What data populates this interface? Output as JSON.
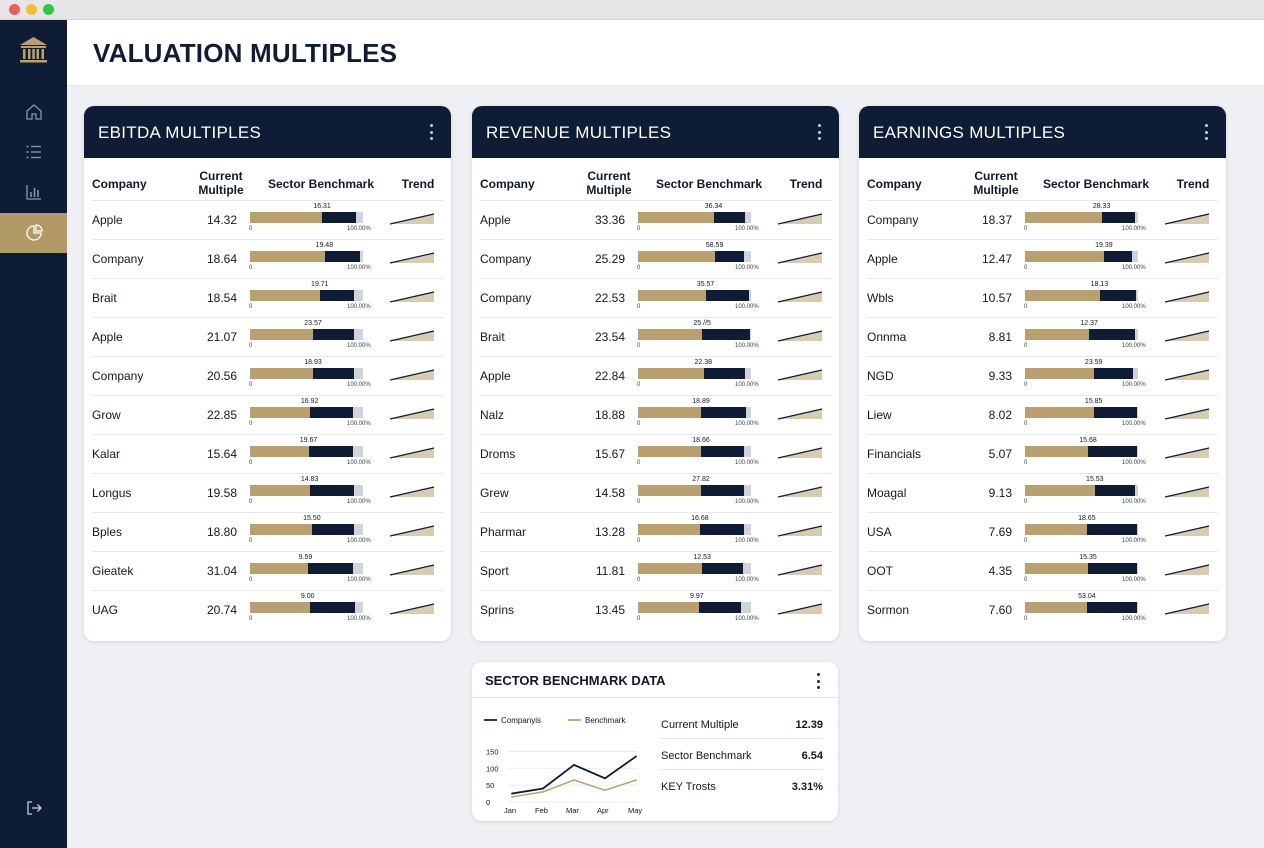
{
  "page": {
    "title": "VALUATION MULTIPLES"
  },
  "colors": {
    "navy": "#0f1c36",
    "gold": "#b9a06e",
    "active_nav": "#b29a67"
  },
  "sidebar": {
    "items": [
      {
        "icon": "home-icon",
        "active": false
      },
      {
        "icon": "list-icon",
        "active": false
      },
      {
        "icon": "bar-chart-icon",
        "active": false
      },
      {
        "icon": "pie-chart-icon",
        "active": true
      }
    ],
    "bottom_icon": "logout-icon"
  },
  "columns": {
    "company": "Company",
    "current_line1": "Current",
    "current_line2": "Multiple",
    "benchmark": "Sector Benchmark",
    "trend": "Trend",
    "bar_min": "0",
    "bar_max": "100.00%"
  },
  "tables": [
    {
      "title": "EBITDA MULTIPLES",
      "rows": [
        {
          "company": "Apple",
          "current": "14.32",
          "benchmark": "16.31",
          "gold_pct": 64,
          "navy_pct": 30
        },
        {
          "company": "Company",
          "current": "18.64",
          "benchmark": "19.48",
          "gold_pct": 66,
          "navy_pct": 31
        },
        {
          "company": "Brait",
          "current": "18.54",
          "benchmark": "19.71",
          "gold_pct": 62,
          "navy_pct": 30
        },
        {
          "company": "Apple",
          "current": "21.07",
          "benchmark": "23.57",
          "gold_pct": 56,
          "navy_pct": 36
        },
        {
          "company": "Company",
          "current": "20.56",
          "benchmark": "18.93",
          "gold_pct": 56,
          "navy_pct": 36
        },
        {
          "company": "Grow",
          "current": "22.85",
          "benchmark": "16.92",
          "gold_pct": 53,
          "navy_pct": 38
        },
        {
          "company": "Kalar",
          "current": "15.64",
          "benchmark": "19.67",
          "gold_pct": 52,
          "navy_pct": 39
        },
        {
          "company": "Longus",
          "current": "19.58",
          "benchmark": "14.83",
          "gold_pct": 53,
          "navy_pct": 39
        },
        {
          "company": "Bples",
          "current": "18.80",
          "benchmark": "15.50",
          "gold_pct": 55,
          "navy_pct": 37
        },
        {
          "company": "Gieatek",
          "current": "31.04",
          "benchmark": "9.59",
          "gold_pct": 51,
          "navy_pct": 40
        },
        {
          "company": "UAG",
          "current": "20.74",
          "benchmark": "9.00",
          "gold_pct": 53,
          "navy_pct": 40
        }
      ]
    },
    {
      "title": "REVENUE MULTIPLES",
      "rows": [
        {
          "company": "Apple",
          "current": "33.36",
          "benchmark": "36.34",
          "gold_pct": 67,
          "navy_pct": 28
        },
        {
          "company": "Company",
          "current": "25.29",
          "benchmark": "58.59",
          "gold_pct": 68,
          "navy_pct": 26
        },
        {
          "company": "Company",
          "current": "22.53",
          "benchmark": "35.57",
          "gold_pct": 60,
          "navy_pct": 38
        },
        {
          "company": "Brait",
          "current": "23.54",
          "benchmark": "25 //5",
          "gold_pct": 57,
          "navy_pct": 42
        },
        {
          "company": "Apple",
          "current": "22.84",
          "benchmark": "22.38",
          "gold_pct": 58,
          "navy_pct": 37
        },
        {
          "company": "Nalz",
          "current": "18.88",
          "benchmark": "18.89",
          "gold_pct": 56,
          "navy_pct": 40
        },
        {
          "company": "Droms",
          "current": "15.67",
          "benchmark": "18.66",
          "gold_pct": 56,
          "navy_pct": 38
        },
        {
          "company": "Grew",
          "current": "14.58",
          "benchmark": "27.82",
          "gold_pct": 56,
          "navy_pct": 38
        },
        {
          "company": "Pharmar",
          "current": "13.28",
          "benchmark": "16.68",
          "gold_pct": 55,
          "navy_pct": 39
        },
        {
          "company": "Sport",
          "current": "11.81",
          "benchmark": "12.53",
          "gold_pct": 57,
          "navy_pct": 36
        },
        {
          "company": "Sprins",
          "current": "13.45",
          "benchmark": "9.97",
          "gold_pct": 54,
          "navy_pct": 37
        }
      ]
    },
    {
      "title": "EARNINGS MULTIPLES",
      "rows": [
        {
          "company": "Company",
          "current": "18.37",
          "benchmark": "28.33",
          "gold_pct": 68,
          "navy_pct": 29
        },
        {
          "company": "Apple",
          "current": "12.47",
          "benchmark": "19.39",
          "gold_pct": 70,
          "navy_pct": 25
        },
        {
          "company": "Wbls",
          "current": "10.57",
          "benchmark": "18.13",
          "gold_pct": 66,
          "navy_pct": 32
        },
        {
          "company": "Onnma",
          "current": "8.81",
          "benchmark": "12.37",
          "gold_pct": 57,
          "navy_pct": 40
        },
        {
          "company": "NGD",
          "current": "9.33",
          "benchmark": "23.59",
          "gold_pct": 61,
          "navy_pct": 35
        },
        {
          "company": "Liew",
          "current": "8.02",
          "benchmark": "15.85",
          "gold_pct": 61,
          "navy_pct": 38
        },
        {
          "company": "Financials",
          "current": "5.07",
          "benchmark": "15.68",
          "gold_pct": 56,
          "navy_pct": 43
        },
        {
          "company": "Moagal",
          "current": "9.13",
          "benchmark": "15.53",
          "gold_pct": 62,
          "navy_pct": 35
        },
        {
          "company": "USA",
          "current": "7.69",
          "benchmark": "18.65",
          "gold_pct": 55,
          "navy_pct": 44
        },
        {
          "company": "OOT",
          "current": "4.35",
          "benchmark": "15.35",
          "gold_pct": 56,
          "navy_pct": 43
        },
        {
          "company": "Sormon",
          "current": "7.60",
          "benchmark": "53.04",
          "gold_pct": 55,
          "navy_pct": 44
        }
      ]
    }
  ],
  "benchmark_card": {
    "title": "SECTOR BENCHMARK DATA",
    "stats": [
      {
        "label": "Current Multiple",
        "value": "12.39"
      },
      {
        "label": "Sector Benchmark",
        "value": "6.54"
      },
      {
        "label": "KEY Trosts",
        "value": "3.31%"
      }
    ]
  },
  "chart_data": {
    "type": "line",
    "x": [
      "Jan",
      "Feb",
      "Mar",
      "Apr",
      "May"
    ],
    "series": [
      {
        "name": "Companyis",
        "color": "#0f1c36",
        "values": [
          25,
          40,
          110,
          70,
          135
        ]
      },
      {
        "name": "Benchmark",
        "color": "#b9a06e",
        "values": [
          15,
          30,
          65,
          35,
          65
        ]
      }
    ],
    "yticks": [
      0,
      50,
      100,
      150
    ],
    "ylim": [
      0,
      160
    ],
    "legend": "top",
    "grid": "horizontal"
  }
}
